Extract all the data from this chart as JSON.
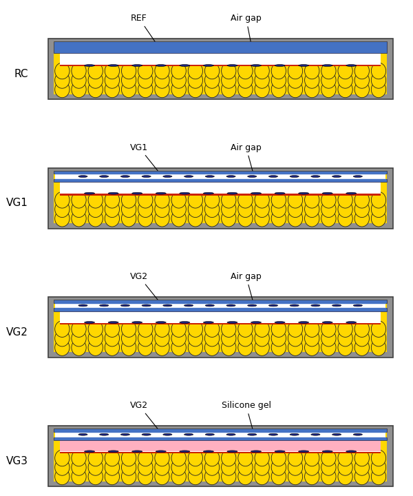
{
  "panels": [
    {
      "label": "RC",
      "top_label": "REF",
      "right_label": "Air gap",
      "has_vacuum_glazing": false,
      "has_silicone": false,
      "air_gap_color": "#FFFFFF"
    },
    {
      "label": "VG1",
      "top_label": "VG1",
      "right_label": "Air gap",
      "has_vacuum_glazing": true,
      "has_silicone": false,
      "air_gap_color": "#FFFFFF"
    },
    {
      "label": "VG2",
      "top_label": "VG2",
      "right_label": "Air gap",
      "has_vacuum_glazing": true,
      "has_silicone": false,
      "air_gap_color": "#FFFFFF"
    },
    {
      "label": "VG3",
      "top_label": "VG2",
      "right_label": "Silicone gel",
      "has_vacuum_glazing": true,
      "has_silicone": true,
      "air_gap_color": "#FFB0C0"
    }
  ],
  "colors": {
    "frame_gray": "#909090",
    "frame_edge": "#404040",
    "insulation_yellow": "#FFD700",
    "insulation_edge": "#222222",
    "glass_blue": "#4472C4",
    "glass_edge": "#222244",
    "vacuum_white": "#FFFFFF",
    "vacuum_dot_blue": "#C8D8F0",
    "absorber_red": "#CC2200",
    "absorber_white": "#FFFFFF",
    "spacer_dark": "#1a237e",
    "background": "#FFFFFF",
    "text_black": "#000000"
  },
  "fig_width": 6.0,
  "fig_height": 7.2,
  "dpi": 100
}
